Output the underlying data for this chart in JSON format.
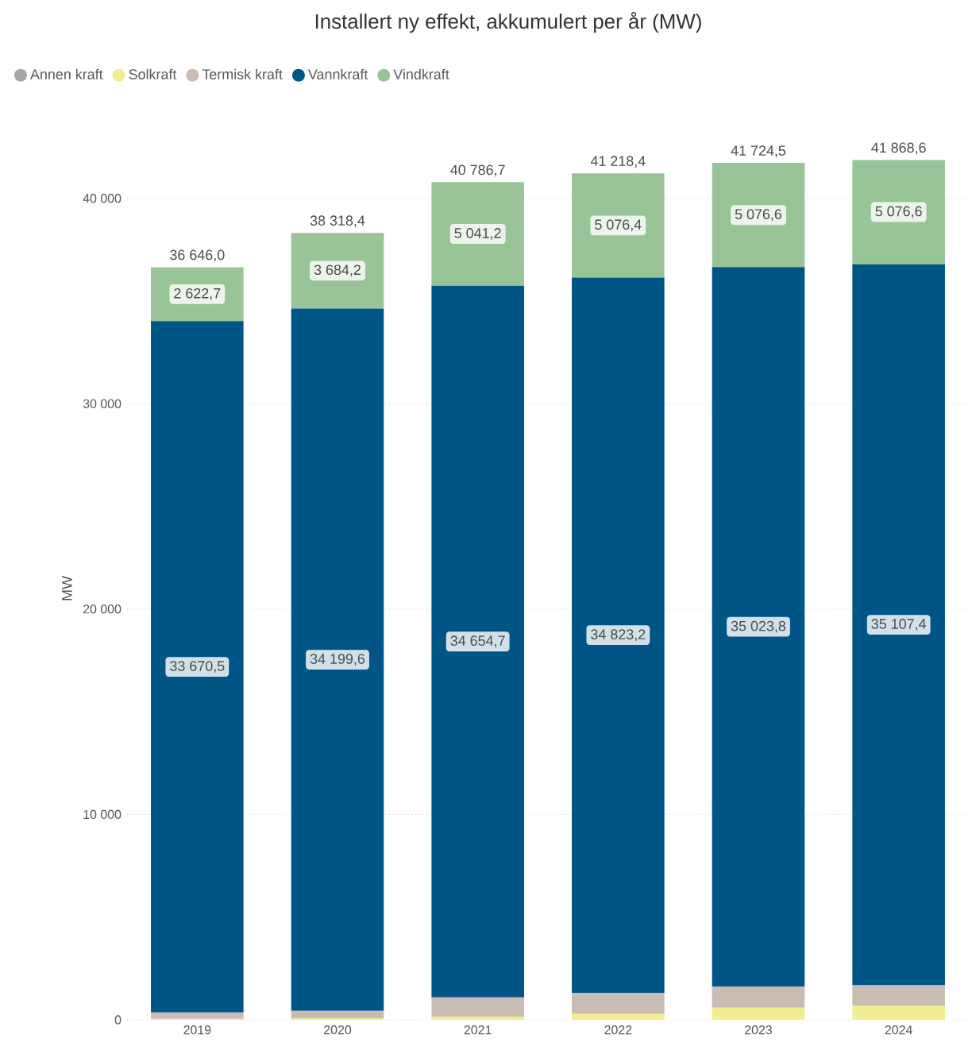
{
  "chart_data": {
    "type": "bar",
    "title": "Installert ny effekt, akkumulert per år (MW)",
    "ylabel": "MW",
    "categories": [
      "2019",
      "2020",
      "2021",
      "2022",
      "2023",
      "2024"
    ],
    "stacked": true,
    "ylim": [
      0,
      42000
    ],
    "yticks": [
      {
        "value": 0,
        "label": "0"
      },
      {
        "value": 10000,
        "label": "10 000"
      },
      {
        "value": 20000,
        "label": "20 000"
      },
      {
        "value": 30000,
        "label": "30 000"
      },
      {
        "value": 40000,
        "label": "40 000"
      }
    ],
    "grid": "y",
    "legend": "top left",
    "series": [
      {
        "name": "Annen kraft",
        "color": "#a6a6a6",
        "values": [
          0,
          0,
          0,
          0,
          0,
          0
        ]
      },
      {
        "name": "Solkraft",
        "color": "#f2ee8f",
        "values": [
          50,
          80,
          150,
          290,
          590,
          700
        ]
      },
      {
        "name": "Termisk kraft",
        "color": "#c8bcb4",
        "values": [
          302.8,
          354.6,
          940.8,
          1028.8,
          1034.1,
          984.6
        ]
      },
      {
        "name": "Vannkraft",
        "color": "#005587",
        "values": [
          33670.5,
          34199.6,
          34654.7,
          34823.2,
          35023.8,
          35107.4
        ],
        "value_labels": [
          "33 670,5",
          "34 199,6",
          "34 654,7",
          "34 823,2",
          "35 023,8",
          "35 107,4"
        ]
      },
      {
        "name": "Vindkraft",
        "color": "#98c498",
        "values": [
          2622.7,
          3684.2,
          5041.2,
          5076.4,
          5076.6,
          5076.6
        ],
        "value_labels": [
          "2 622,7",
          "3 684,2",
          "5 041,2",
          "5 076,4",
          "5 076,6",
          "5 076,6"
        ]
      }
    ],
    "totals": [
      "36 646,0",
      "38 318,4",
      "40 786,7",
      "41 218,4",
      "41 724,5",
      "41 868,6"
    ]
  }
}
